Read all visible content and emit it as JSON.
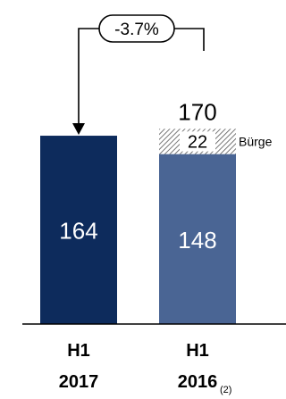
{
  "chart_data": {
    "type": "bar",
    "stacked": true,
    "categories": [
      {
        "line1": "H1",
        "line2": "2017",
        "footnote": ""
      },
      {
        "line1": "H1",
        "line2": "2016",
        "footnote": "(2)"
      }
    ],
    "series": [
      {
        "values": [
          164,
          148
        ],
        "labels": [
          "164",
          "148"
        ]
      },
      {
        "name": "Bürge",
        "values": [
          0,
          22
        ],
        "labels": [
          "",
          "22"
        ],
        "pattern": "hatched"
      }
    ],
    "totals": [
      {
        "value": 164,
        "label": ""
      },
      {
        "value": 170,
        "label": "170"
      }
    ],
    "change_label": "-3.7%",
    "ylim": [
      0,
      220
    ],
    "grid": false,
    "legend": "inline-right",
    "colors": {
      "bar_2017": "#0d2b5c",
      "bar_2016": "#4a6594",
      "hatch": "#555555",
      "text_dark": "#000000",
      "text_light": "#ffffff"
    }
  }
}
